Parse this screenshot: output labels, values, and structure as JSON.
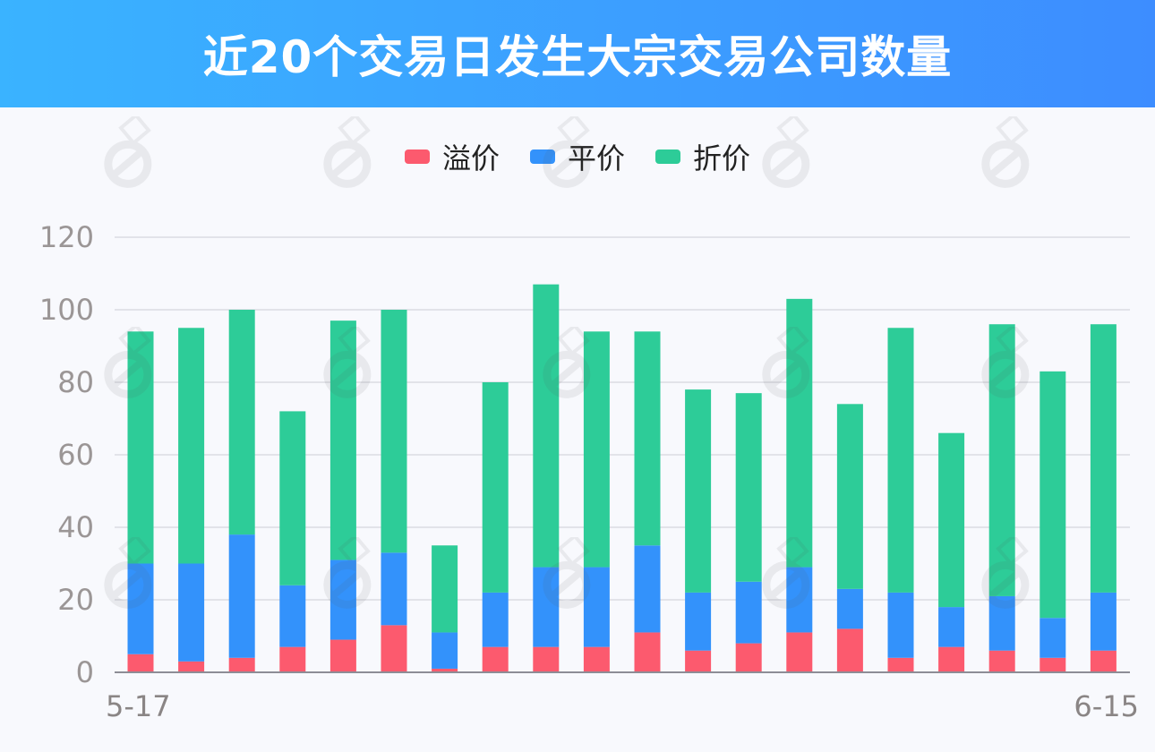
{
  "header": {
    "title": "近20个交易日发生大宗交易公司数量"
  },
  "colors": {
    "premium": "#fc5a6e",
    "par": "#3392fb",
    "discount": "#2dcc98",
    "banner_start": "#3ab3ff",
    "banner_end": "#3d8dff"
  },
  "chart_data": {
    "type": "bar",
    "stacked": true,
    "title": "近20个交易日发生大宗交易公司数量",
    "categories": [
      "5-17",
      "",
      "",
      "",
      "",
      "",
      "",
      "",
      "",
      "",
      "",
      "",
      "",
      "",
      "",
      "",
      "",
      "",
      "",
      "6-15"
    ],
    "x_tick_labels": [
      "5-17",
      "6-15"
    ],
    "series": [
      {
        "name": "溢价",
        "color": "#fc5a6e",
        "values": [
          5,
          3,
          4,
          7,
          9,
          13,
          1,
          7,
          7,
          7,
          11,
          6,
          8,
          11,
          12,
          4,
          7,
          6,
          4,
          6
        ]
      },
      {
        "name": "平价",
        "color": "#3392fb",
        "values": [
          25,
          27,
          34,
          17,
          22,
          20,
          10,
          15,
          22,
          22,
          24,
          16,
          17,
          18,
          11,
          18,
          11,
          15,
          11,
          16
        ]
      },
      {
        "name": "折价",
        "color": "#2dcc98",
        "values": [
          64,
          65,
          62,
          48,
          66,
          67,
          24,
          58,
          78,
          65,
          59,
          56,
          52,
          74,
          51,
          73,
          48,
          75,
          68,
          74
        ]
      }
    ],
    "yticks": [
      0,
      20,
      40,
      60,
      80,
      100,
      120
    ],
    "ylim": [
      0,
      120
    ],
    "grid": true,
    "legend_position": "top-center"
  }
}
